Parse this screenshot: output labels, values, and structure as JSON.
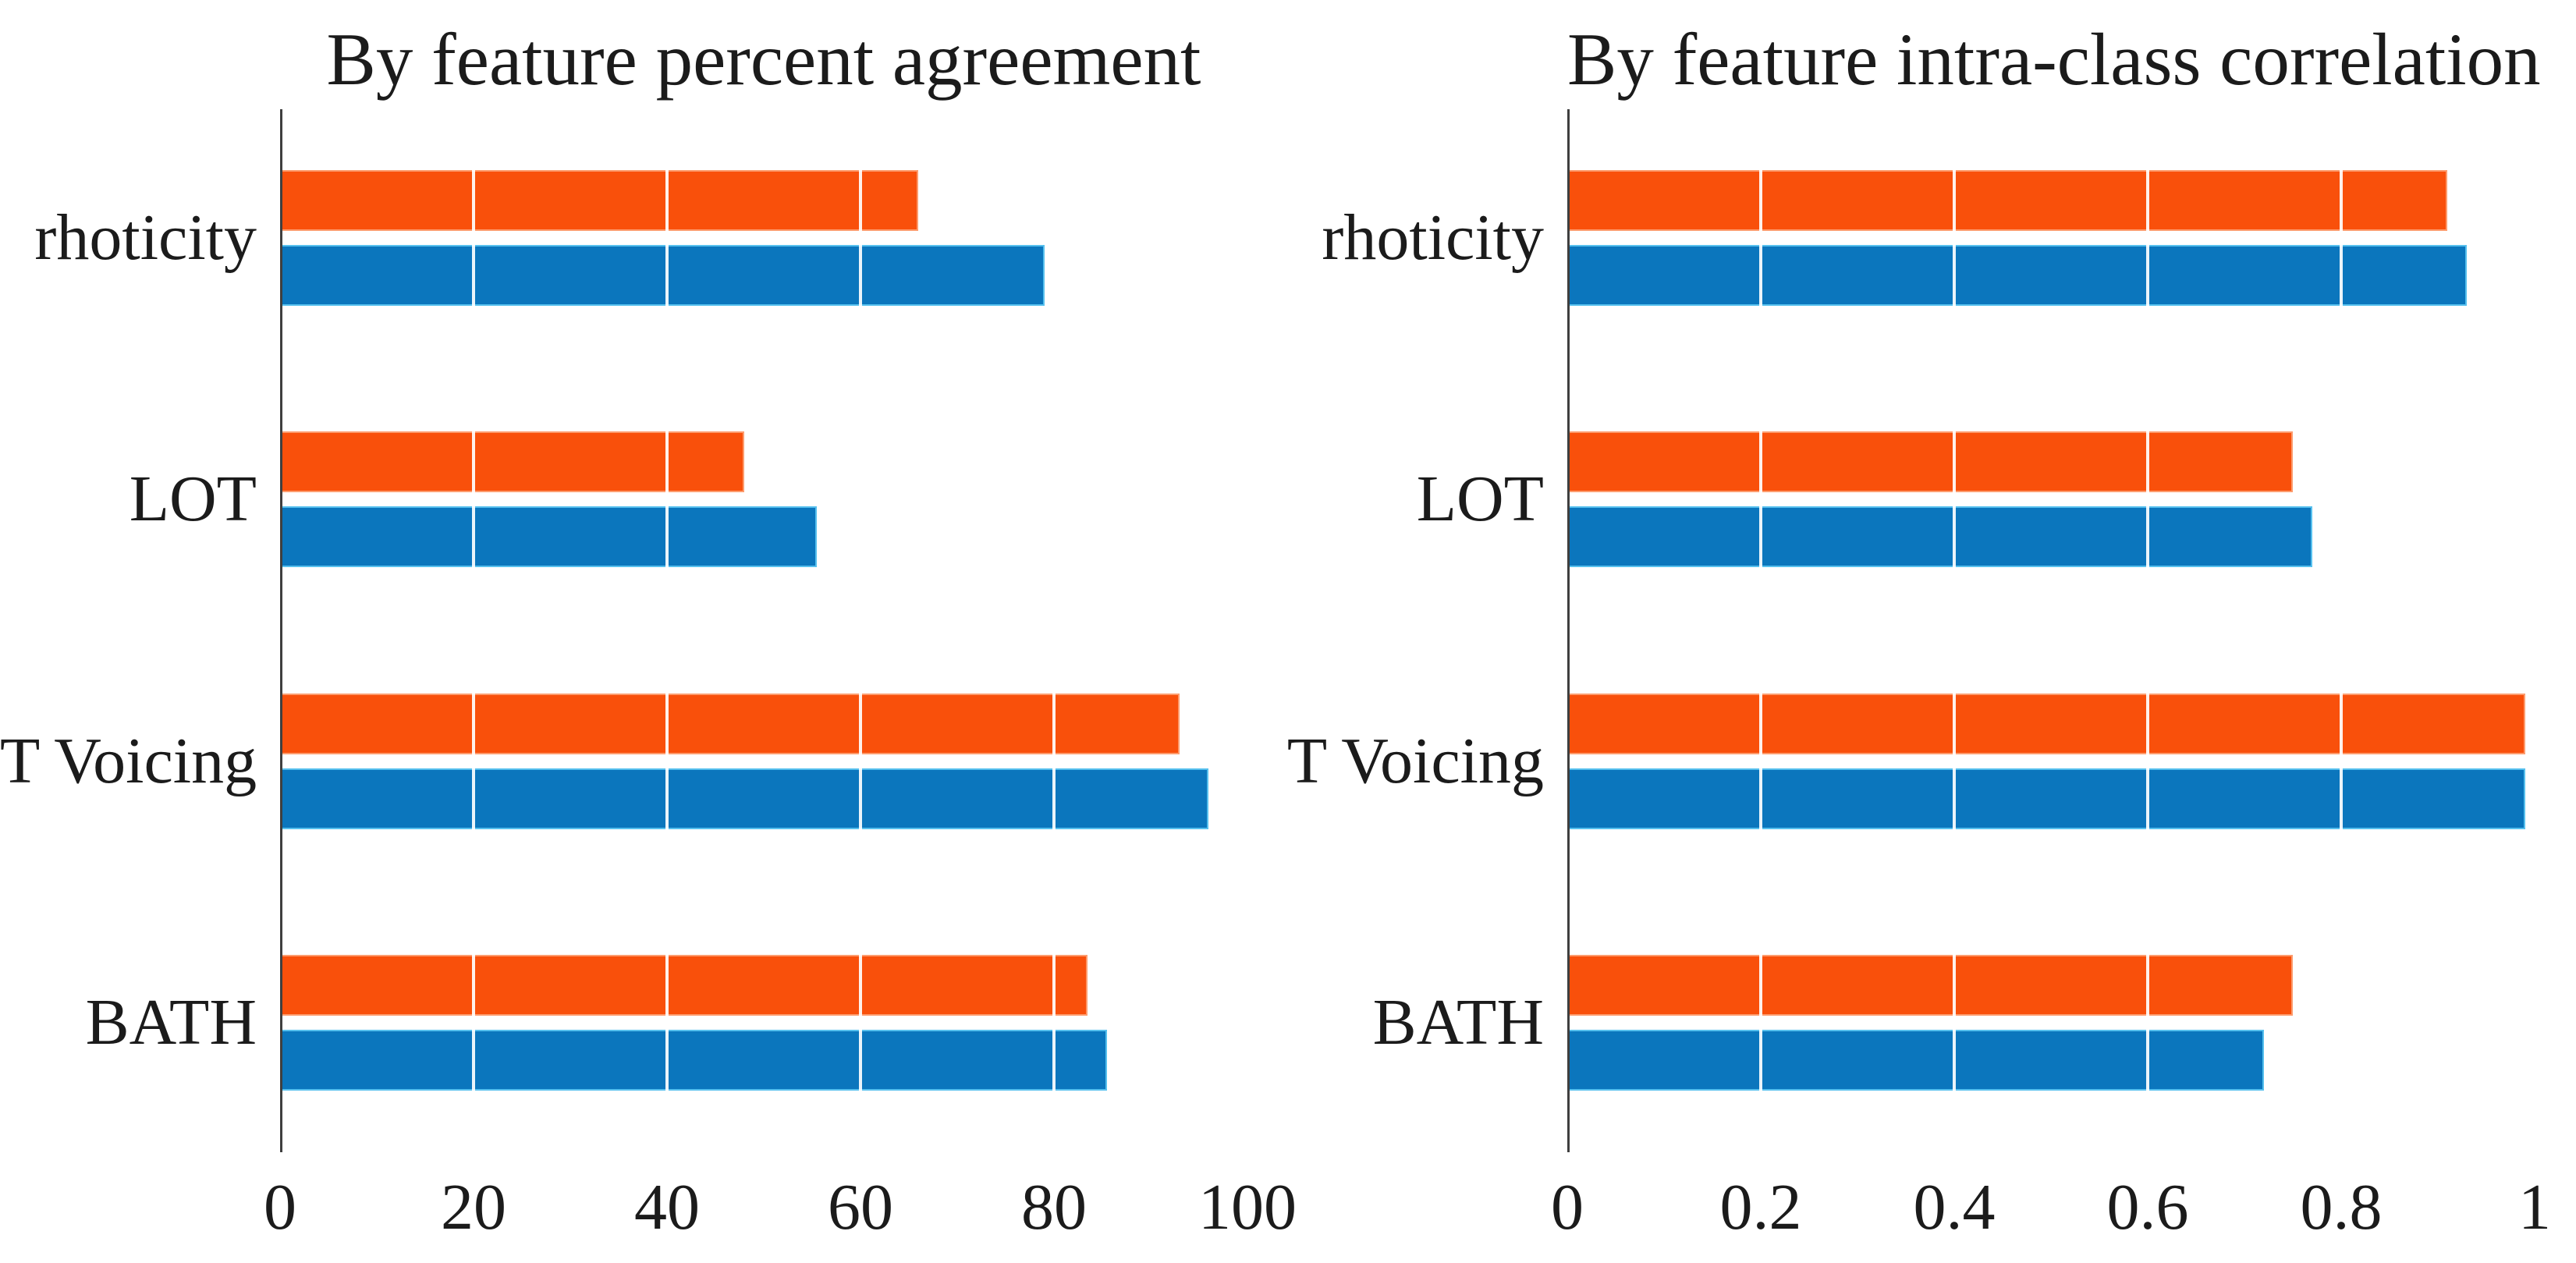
{
  "figure": {
    "background": "#ffffff",
    "axis_color": "#3f3f3f",
    "text_color": "#1b1b1b",
    "gridline_color": "#ffffff"
  },
  "chart_data": [
    {
      "type": "bar",
      "orientation": "horizontal",
      "panel": "left",
      "title": "By feature percent agreement",
      "categories": [
        "rhoticity",
        "LOT",
        "T Voicing",
        "BATH"
      ],
      "series": [
        {
          "name": "orange-top-bar",
          "color": "#f9500b",
          "edge_color": "#fd9c6e",
          "values": [
            66,
            48,
            93,
            83.5
          ]
        },
        {
          "name": "blue-bottom-bar",
          "color": "#0b76bd",
          "edge_color": "#56c0ee",
          "values": [
            79,
            55.5,
            96,
            85.5
          ]
        }
      ],
      "xlim": [
        0,
        100
      ],
      "xticks": [
        0,
        20,
        40,
        60,
        80,
        100
      ],
      "xtick_labels": [
        "0",
        "20",
        "40",
        "60",
        "80",
        "100"
      ],
      "grid": "vertical-white-over-bars",
      "legend": "none"
    },
    {
      "type": "bar",
      "orientation": "horizontal",
      "panel": "right",
      "title": "By feature intra-class correlation",
      "categories": [
        "rhoticity",
        "LOT",
        "T Voicing",
        "BATH"
      ],
      "series": [
        {
          "name": "orange-top-bar",
          "color": "#f9500b",
          "edge_color": "#fd9c6e",
          "values": [
            0.91,
            0.75,
            0.99,
            0.75
          ]
        },
        {
          "name": "blue-bottom-bar",
          "color": "#0b76bd",
          "edge_color": "#56c0ee",
          "values": [
            0.93,
            0.77,
            0.99,
            0.72
          ]
        }
      ],
      "xlim": [
        0,
        1
      ],
      "xticks": [
        0,
        0.2,
        0.4,
        0.6,
        0.8,
        1
      ],
      "xtick_labels": [
        "0",
        "0.2",
        "0.4",
        "0.6",
        "0.8",
        "1"
      ],
      "grid": "vertical-white-over-bars",
      "legend": "none"
    }
  ]
}
